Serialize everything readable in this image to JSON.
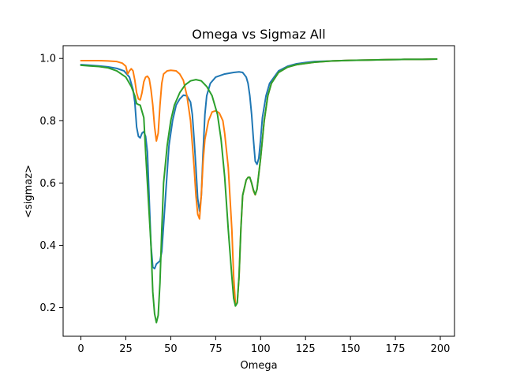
{
  "chart_data": {
    "type": "line",
    "title": "Omega vs Sigmaz All",
    "xlabel": "Omega",
    "ylabel": "<sigmaz>",
    "xlim": [
      -9.9,
      207.9
    ],
    "ylim": [
      0.108,
      1.041
    ],
    "xticks": [
      0,
      25,
      50,
      75,
      100,
      125,
      150,
      175,
      200
    ],
    "yticks": [
      0.2,
      0.4,
      0.6,
      0.8,
      1.0
    ],
    "xtick_labels": [
      "0",
      "25",
      "50",
      "75",
      "100",
      "125",
      "150",
      "175",
      "200"
    ],
    "ytick_labels": [
      "0.2",
      "0.4",
      "0.6",
      "0.8",
      "1.0"
    ],
    "grid": false,
    "legend": false,
    "series": [
      {
        "color": "#1f77b4",
        "points": [
          [
            0,
            0.98
          ],
          [
            5,
            0.978
          ],
          [
            10,
            0.976
          ],
          [
            15,
            0.973
          ],
          [
            20,
            0.968
          ],
          [
            24,
            0.96
          ],
          [
            27,
            0.94
          ],
          [
            29,
            0.9
          ],
          [
            30,
            0.86
          ],
          [
            31,
            0.78
          ],
          [
            32,
            0.75
          ],
          [
            33,
            0.745
          ],
          [
            34,
            0.76
          ],
          [
            35,
            0.765
          ],
          [
            36,
            0.75
          ],
          [
            37,
            0.7
          ],
          [
            38,
            0.55
          ],
          [
            39,
            0.4
          ],
          [
            40,
            0.33
          ],
          [
            41,
            0.325
          ],
          [
            42,
            0.34
          ],
          [
            44,
            0.35
          ],
          [
            45,
            0.38
          ],
          [
            47,
            0.55
          ],
          [
            49,
            0.72
          ],
          [
            51,
            0.8
          ],
          [
            53,
            0.85
          ],
          [
            55,
            0.87
          ],
          [
            57,
            0.882
          ],
          [
            59,
            0.88
          ],
          [
            61,
            0.86
          ],
          [
            62,
            0.82
          ],
          [
            63,
            0.74
          ],
          [
            64,
            0.65
          ],
          [
            65,
            0.55
          ],
          [
            66,
            0.51
          ],
          [
            67,
            0.56
          ],
          [
            68,
            0.7
          ],
          [
            69,
            0.82
          ],
          [
            70,
            0.88
          ],
          [
            72,
            0.92
          ],
          [
            75,
            0.94
          ],
          [
            80,
            0.95
          ],
          [
            85,
            0.955
          ],
          [
            88,
            0.957
          ],
          [
            90,
            0.955
          ],
          [
            92,
            0.94
          ],
          [
            93,
            0.92
          ],
          [
            94,
            0.88
          ],
          [
            95,
            0.82
          ],
          [
            96,
            0.74
          ],
          [
            97,
            0.67
          ],
          [
            98,
            0.66
          ],
          [
            99,
            0.68
          ],
          [
            100,
            0.74
          ],
          [
            101,
            0.81
          ],
          [
            103,
            0.88
          ],
          [
            105,
            0.92
          ],
          [
            110,
            0.96
          ],
          [
            115,
            0.975
          ],
          [
            120,
            0.983
          ],
          [
            125,
            0.987
          ],
          [
            130,
            0.99
          ],
          [
            140,
            0.992
          ],
          [
            150,
            0.994
          ],
          [
            160,
            0.995
          ],
          [
            170,
            0.996
          ],
          [
            180,
            0.997
          ],
          [
            190,
            0.997
          ],
          [
            198,
            0.998
          ]
        ]
      },
      {
        "color": "#ff7f0e",
        "points": [
          [
            0,
            0.993
          ],
          [
            5,
            0.993
          ],
          [
            10,
            0.993
          ],
          [
            15,
            0.992
          ],
          [
            20,
            0.99
          ],
          [
            23,
            0.985
          ],
          [
            25,
            0.975
          ],
          [
            26,
            0.95
          ],
          [
            27,
            0.96
          ],
          [
            28,
            0.967
          ],
          [
            29,
            0.96
          ],
          [
            30,
            0.93
          ],
          [
            31,
            0.89
          ],
          [
            32,
            0.87
          ],
          [
            33,
            0.867
          ],
          [
            34,
            0.89
          ],
          [
            35,
            0.925
          ],
          [
            36,
            0.94
          ],
          [
            37,
            0.943
          ],
          [
            38,
            0.935
          ],
          [
            39,
            0.9
          ],
          [
            40,
            0.85
          ],
          [
            41,
            0.78
          ],
          [
            42,
            0.735
          ],
          [
            43,
            0.76
          ],
          [
            44,
            0.85
          ],
          [
            45,
            0.92
          ],
          [
            46,
            0.95
          ],
          [
            48,
            0.96
          ],
          [
            50,
            0.962
          ],
          [
            53,
            0.96
          ],
          [
            55,
            0.95
          ],
          [
            57,
            0.93
          ],
          [
            59,
            0.88
          ],
          [
            61,
            0.8
          ],
          [
            63,
            0.65
          ],
          [
            64,
            0.56
          ],
          [
            65,
            0.5
          ],
          [
            66,
            0.485
          ],
          [
            67,
            0.56
          ],
          [
            68,
            0.67
          ],
          [
            69,
            0.74
          ],
          [
            71,
            0.8
          ],
          [
            73,
            0.828
          ],
          [
            75,
            0.832
          ],
          [
            77,
            0.825
          ],
          [
            79,
            0.8
          ],
          [
            80,
            0.76
          ],
          [
            82,
            0.65
          ],
          [
            84,
            0.45
          ],
          [
            85,
            0.3
          ],
          [
            86,
            0.21
          ],
          [
            87,
            0.215
          ],
          [
            88,
            0.3
          ],
          [
            89,
            0.45
          ],
          [
            90,
            0.56
          ],
          [
            92,
            0.61
          ],
          [
            93,
            0.618
          ],
          [
            94,
            0.618
          ],
          [
            95,
            0.6
          ],
          [
            96,
            0.575
          ],
          [
            97,
            0.562
          ],
          [
            98,
            0.58
          ],
          [
            100,
            0.68
          ],
          [
            102,
            0.8
          ],
          [
            104,
            0.88
          ],
          [
            106,
            0.92
          ],
          [
            110,
            0.955
          ],
          [
            115,
            0.972
          ],
          [
            120,
            0.98
          ],
          [
            130,
            0.988
          ],
          [
            140,
            0.992
          ],
          [
            150,
            0.994
          ],
          [
            160,
            0.995
          ],
          [
            170,
            0.996
          ],
          [
            180,
            0.997
          ],
          [
            190,
            0.997
          ],
          [
            198,
            0.998
          ]
        ]
      },
      {
        "color": "#2ca02c",
        "points": [
          [
            0,
            0.978
          ],
          [
            5,
            0.976
          ],
          [
            10,
            0.974
          ],
          [
            15,
            0.97
          ],
          [
            20,
            0.96
          ],
          [
            25,
            0.94
          ],
          [
            28,
            0.91
          ],
          [
            30,
            0.88
          ],
          [
            31,
            0.855
          ],
          [
            32,
            0.852
          ],
          [
            33,
            0.85
          ],
          [
            35,
            0.81
          ],
          [
            36,
            0.7
          ],
          [
            37,
            0.6
          ],
          [
            38,
            0.5
          ],
          [
            39,
            0.4
          ],
          [
            40,
            0.25
          ],
          [
            41,
            0.18
          ],
          [
            42,
            0.152
          ],
          [
            43,
            0.175
          ],
          [
            44,
            0.28
          ],
          [
            45,
            0.45
          ],
          [
            46,
            0.6
          ],
          [
            48,
            0.72
          ],
          [
            50,
            0.8
          ],
          [
            52,
            0.85
          ],
          [
            55,
            0.89
          ],
          [
            58,
            0.915
          ],
          [
            61,
            0.928
          ],
          [
            64,
            0.932
          ],
          [
            67,
            0.928
          ],
          [
            70,
            0.91
          ],
          [
            73,
            0.88
          ],
          [
            76,
            0.82
          ],
          [
            78,
            0.74
          ],
          [
            80,
            0.62
          ],
          [
            82,
            0.45
          ],
          [
            84,
            0.3
          ],
          [
            85,
            0.23
          ],
          [
            86,
            0.205
          ],
          [
            87,
            0.215
          ],
          [
            88,
            0.3
          ],
          [
            89,
            0.45
          ],
          [
            90,
            0.56
          ],
          [
            92,
            0.61
          ],
          [
            93,
            0.618
          ],
          [
            94,
            0.618
          ],
          [
            95,
            0.6
          ],
          [
            96,
            0.578
          ],
          [
            97,
            0.563
          ],
          [
            98,
            0.58
          ],
          [
            100,
            0.68
          ],
          [
            102,
            0.8
          ],
          [
            104,
            0.88
          ],
          [
            106,
            0.92
          ],
          [
            110,
            0.955
          ],
          [
            115,
            0.972
          ],
          [
            120,
            0.98
          ],
          [
            130,
            0.988
          ],
          [
            140,
            0.992
          ],
          [
            150,
            0.994
          ],
          [
            160,
            0.995
          ],
          [
            170,
            0.996
          ],
          [
            180,
            0.997
          ],
          [
            190,
            0.997
          ],
          [
            198,
            0.998
          ]
        ]
      }
    ]
  }
}
